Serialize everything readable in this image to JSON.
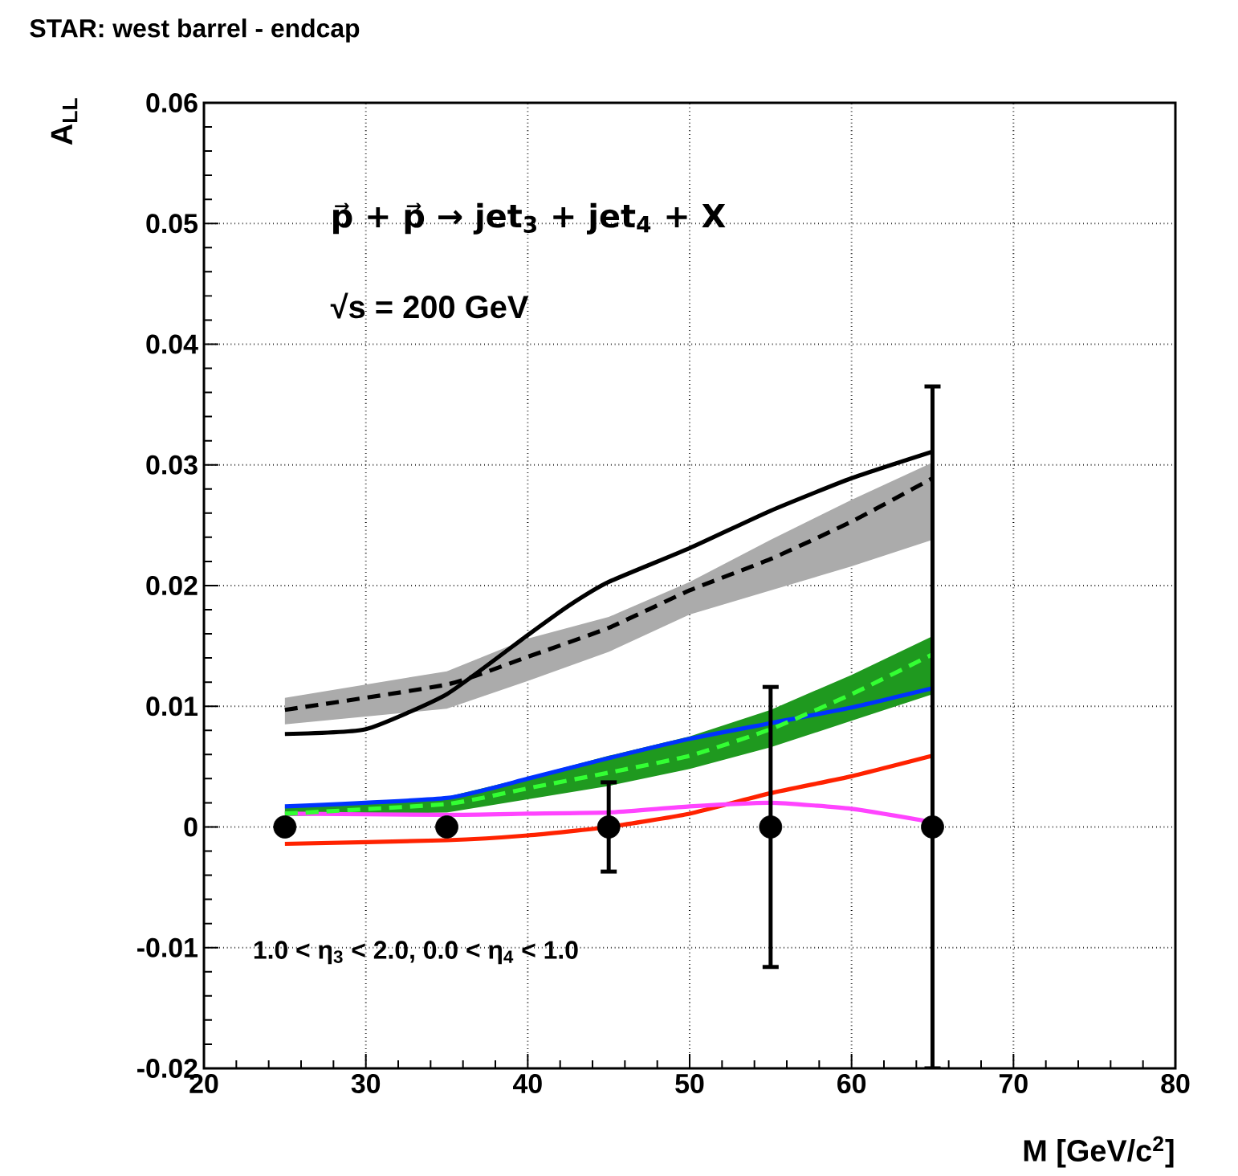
{
  "chart_data": {
    "type": "line",
    "title": "STAR: west barrel - endcap",
    "xlabel": "M [GeV/c$^{2}$]",
    "ylabel": "A$_{LL}$",
    "annotations": [
      "p⃗ + p⃗ → jet$_{3}$ + jet$_{4}$ + X",
      "√s = 200 GeV",
      "1.0 < η$_{3}$ < 2.0, 0.0 < η$_{4}$ < 1.0"
    ],
    "xlim": [
      20,
      80
    ],
    "xticks": [
      20,
      30,
      40,
      50,
      60,
      70,
      80
    ],
    "ylim": [
      -0.02,
      0.06
    ],
    "yticks": [
      -0.02,
      -0.01,
      0,
      0.01,
      0.02,
      0.03,
      0.04,
      0.05,
      0.06
    ],
    "grid": true,
    "series": [
      {
        "type": "line",
        "color": "#000000",
        "line_style": "solid",
        "x": [
          25,
          30,
          35,
          40,
          42.5,
          45,
          50,
          55,
          60,
          65
        ],
        "values": [
          0.0077,
          0.0081,
          0.011,
          0.0159,
          0.0183,
          0.0203,
          0.0231,
          0.0262,
          0.0289,
          0.0311
        ]
      },
      {
        "type": "line",
        "color": "#ff2200",
        "line_style": "solid",
        "x": [
          25,
          35,
          40,
          45,
          50,
          55,
          60,
          65
        ],
        "values": [
          -0.0014,
          -0.0011,
          -0.0007,
          0,
          0.0011,
          0.0028,
          0.0042,
          0.0059
        ]
      },
      {
        "type": "line",
        "color": "#ff44ff",
        "line_style": "solid",
        "x": [
          25,
          35,
          40,
          45,
          50,
          55,
          60,
          65
        ],
        "values": [
          0.0011,
          0.001,
          0.0011,
          0.0012,
          0.0017,
          0.002,
          0.0015,
          0.0004
        ]
      },
      {
        "type": "line",
        "color": "#0033ff",
        "line_style": "solid",
        "x": [
          25,
          35,
          40,
          45,
          50,
          55,
          60,
          65
        ],
        "values": [
          0.0017,
          0.0024,
          0.004,
          0.0057,
          0.0073,
          0.0086,
          0.0099,
          0.0115
        ]
      },
      {
        "type": "line",
        "color": "#000000",
        "line_style": "dashed",
        "x": [
          25,
          35,
          40,
          45,
          50,
          55,
          60,
          65
        ],
        "values": [
          0.0097,
          0.0118,
          0.0141,
          0.0165,
          0.0196,
          0.0222,
          0.0253,
          0.0289
        ],
        "lower": [
          0.0085,
          0.0098,
          0.0121,
          0.0145,
          0.0176,
          0.0196,
          0.0216,
          0.0238
        ],
        "upper": [
          0.0107,
          0.0129,
          0.0156,
          0.0174,
          0.0203,
          0.0238,
          0.0271,
          0.0302
        ]
      },
      {
        "type": "line",
        "color": "#33ff33",
        "line_style": "dashed",
        "x": [
          25,
          35,
          40,
          45,
          50,
          55,
          60,
          65
        ],
        "values": [
          0.0011,
          0.0019,
          0.0032,
          0.0045,
          0.0059,
          0.0081,
          0.011,
          0.0143
        ],
        "lower": [
          0.0009,
          0.0012,
          0.0023,
          0.0034,
          0.0048,
          0.0066,
          0.0088,
          0.011
        ],
        "upper": [
          0.0017,
          0.0025,
          0.0041,
          0.0059,
          0.0075,
          0.0097,
          0.0126,
          0.0158
        ]
      },
      {
        "type": "scatter",
        "color": "#000000",
        "marker": "circle",
        "x": [
          25,
          35,
          45,
          55,
          65
        ],
        "values": [
          0,
          0,
          0,
          0,
          0
        ],
        "errors": [
          null,
          null,
          0.0037,
          0.0116,
          [
            -0.02,
            0.0365
          ]
        ]
      }
    ]
  }
}
